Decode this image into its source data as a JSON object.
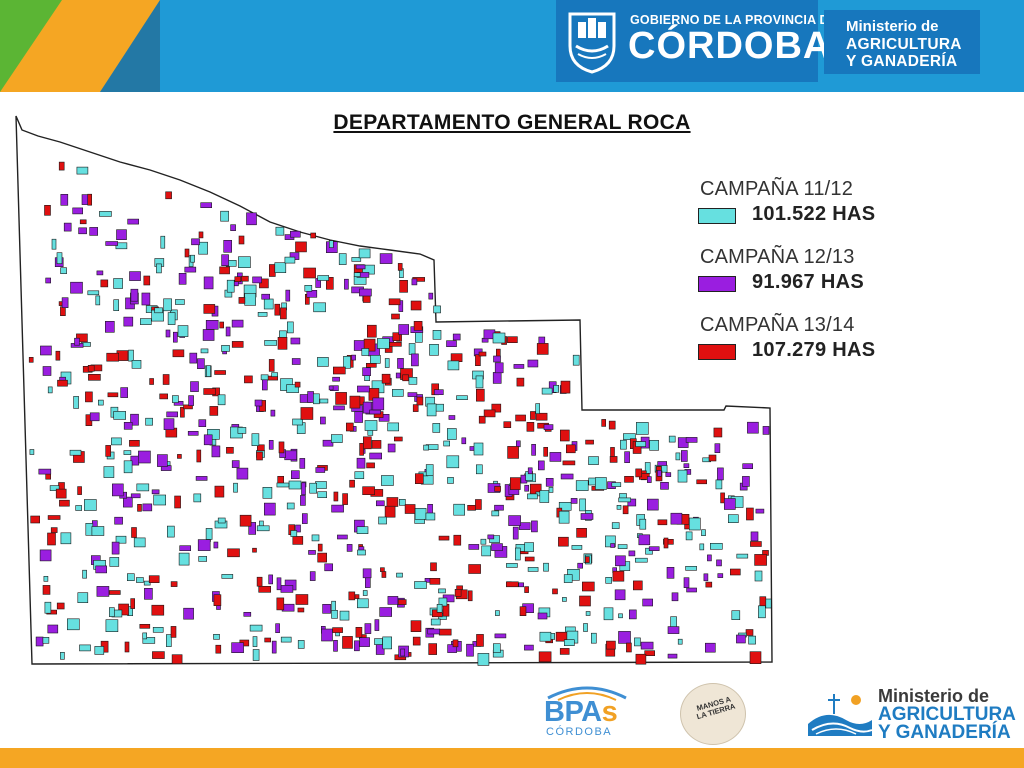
{
  "header": {
    "gov_line1": "GOBIERNO DE LA PROVINCIA DE",
    "gov_line2": "CÓRDOBA",
    "ministry_line1": "Ministerio de",
    "ministry_line2": "AGRICULTURA",
    "ministry_line3": "Y GANADERÍA"
  },
  "title": "DEPARTAMENTO GENERAL ROCA",
  "legend": [
    {
      "label": "CAMPAÑA 11/12",
      "value": "101.522 HAS",
      "color": "#66e0e0"
    },
    {
      "label": "CAMPAÑA 12/13",
      "value": "91.967 HAS",
      "color": "#9a1ee0"
    },
    {
      "label": "CAMPAÑA 13/14",
      "value": "107.279 HAS",
      "color": "#e01010"
    }
  ],
  "footer": {
    "bpas_main": "BPA",
    "bpas_s": "s",
    "bpas_sub": "CÓRDOBA",
    "manos_text": "MANOS A LA TIERRA",
    "ministry_line1": "Ministerio de",
    "ministry_line2": "AGRICULTURA",
    "ministry_line3": "Y GANADERÍA"
  },
  "colors": {
    "header_blue": "#1f9ad6",
    "logo_blue": "#1777bd",
    "green_corner": "#5bb534",
    "orange_corner": "#f5a623",
    "footer_orange": "#f5a623"
  }
}
